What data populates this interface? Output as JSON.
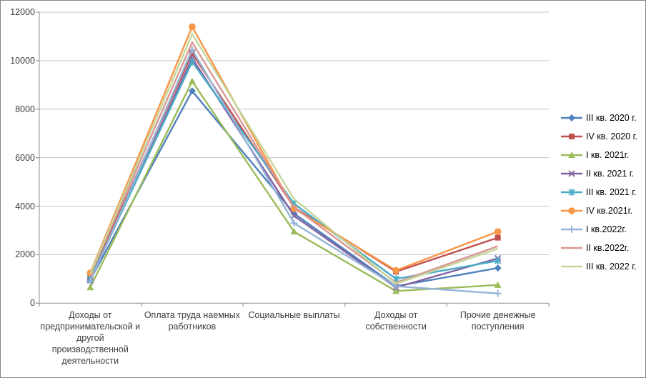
{
  "chart_data": {
    "type": "line",
    "title": "",
    "xlabel": "",
    "ylabel": "",
    "ylim": [
      0,
      12000
    ],
    "yticks": [
      0,
      2000,
      4000,
      6000,
      8000,
      10000,
      12000
    ],
    "grid": true,
    "legend_position": "right",
    "categories": [
      "Доходы от предпринимательской и другой производственной деятельности",
      "Оплата труда наемных работников",
      "Социальные выплаты",
      "Доходы от собственности",
      "Прочие денежные поступления"
    ],
    "category_label_lines": [
      [
        "Доходы от",
        "предпринимательской и",
        "другой",
        "производственной",
        "деятельности"
      ],
      [
        "Оплата труда наемных",
        "работников"
      ],
      [
        "Социальные выплаты"
      ],
      [
        "Доходы от",
        "собственности"
      ],
      [
        "Прочие денежные",
        "поступления"
      ]
    ],
    "series": [
      {
        "name": "III кв. 2020 г.",
        "color": "#4F81BD",
        "marker": "diamond",
        "values": [
          950,
          8750,
          3700,
          700,
          1450
        ]
      },
      {
        "name": "IV кв. 2020 г.",
        "color": "#C0504D",
        "marker": "square",
        "values": [
          1100,
          10300,
          3950,
          1300,
          2700
        ]
      },
      {
        "name": "I кв. 2021г.",
        "color": "#9BBB59",
        "marker": "triangle",
        "values": [
          650,
          9150,
          2950,
          500,
          750
        ]
      },
      {
        "name": "II кв. 2021 г.",
        "color": "#8064A2",
        "marker": "x",
        "values": [
          950,
          10100,
          3600,
          650,
          1850
        ]
      },
      {
        "name": "III кв. 2021 г.",
        "color": "#4BACC6",
        "marker": "asterisk",
        "values": [
          1000,
          9950,
          4100,
          1000,
          1750
        ]
      },
      {
        "name": "IV кв.2021г.",
        "color": "#F79646",
        "marker": "circle",
        "values": [
          1250,
          11400,
          3900,
          1350,
          2950
        ]
      },
      {
        "name": "I кв.2022г.",
        "color": "#95B3D7",
        "marker": "plus",
        "values": [
          900,
          10450,
          3300,
          700,
          400
        ]
      },
      {
        "name": "II кв.2022г.",
        "color": "#D99694",
        "marker": "none",
        "values": [
          1150,
          10750,
          3950,
          850,
          2350
        ]
      },
      {
        "name": "III кв. 2022 г.",
        "color": "#C3D69B",
        "marker": "none",
        "values": [
          1200,
          11100,
          4300,
          800,
          2250
        ]
      }
    ]
  },
  "colors": {
    "background": "#FFFFFF",
    "border": "#848484",
    "gridline": "#C6C6C6",
    "axis": "#8C8C8C",
    "tick_text": "#3D3D3D",
    "legend_text": "#000000"
  }
}
